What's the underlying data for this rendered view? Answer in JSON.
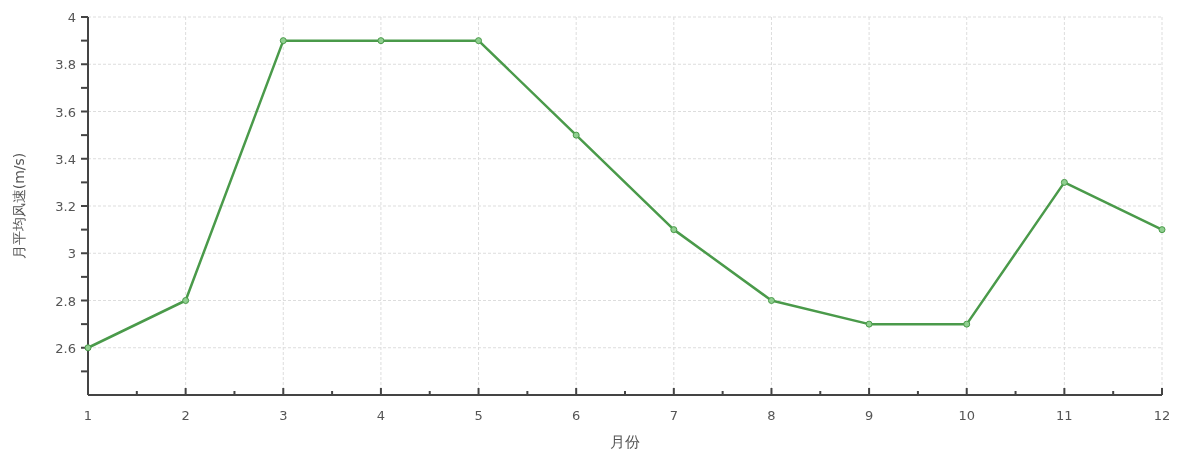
{
  "chart_data": {
    "type": "line",
    "xlabel": "月份",
    "ylabel": "月平均风速(m/s)",
    "x": [
      1,
      2,
      3,
      4,
      5,
      6,
      7,
      8,
      9,
      10,
      11,
      12
    ],
    "series": [
      {
        "color": "#4a9a4a",
        "values": [
          2.6,
          2.8,
          3.9,
          3.9,
          3.9,
          3.5,
          3.1,
          2.8,
          2.7,
          2.7,
          3.3,
          3.1
        ]
      }
    ],
    "xlim": [
      1,
      12
    ],
    "xticks": [
      1,
      {
        "value": 1.5,
        "label": null
      },
      2,
      {
        "value": 2.5,
        "label": null
      },
      3,
      {
        "value": 3.5,
        "label": null
      },
      4,
      {
        "value": 4.5,
        "label": null
      },
      5,
      {
        "value": 5.5,
        "label": null
      },
      6,
      {
        "value": 6.5,
        "label": null
      },
      7,
      {
        "value": 7.5,
        "label": null
      },
      8,
      {
        "value": 8.5,
        "label": null
      },
      9,
      {
        "value": 9.5,
        "label": null
      },
      10,
      {
        "value": 10.5,
        "label": null
      },
      11,
      {
        "value": 11.5,
        "label": null
      },
      12
    ],
    "ylim": [
      2.4,
      4
    ],
    "yticks": [
      {
        "value": 2.5,
        "label": null
      },
      2.6,
      {
        "value": 2.7,
        "label": null
      },
      2.8,
      {
        "value": 2.9,
        "label": null
      },
      3,
      {
        "value": 3.1,
        "label": null
      },
      3.2,
      {
        "value": 3.3,
        "label": null
      },
      3.4,
      {
        "value": 3.5,
        "label": null
      },
      3.6,
      {
        "value": 3.7,
        "label": null
      },
      3.8,
      {
        "value": 3.9,
        "label": null
      },
      4
    ],
    "grid": true,
    "marker": "circle",
    "line_style": "solid"
  }
}
